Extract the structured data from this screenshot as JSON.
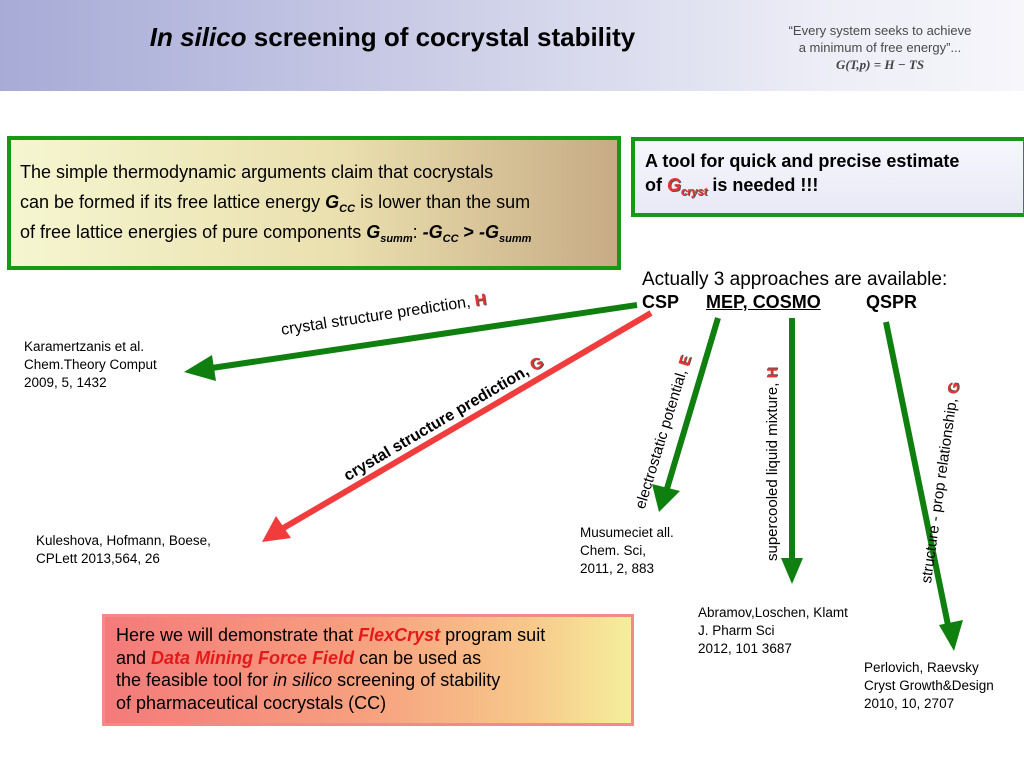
{
  "header": {
    "title_italic": "In silico",
    "title_rest": " screening of cocrystal stability",
    "quote_line1": "“Every system seeks to achieve",
    "quote_line2": "a minimum of free energy”...",
    "formula": "G(T,p) = H − TS"
  },
  "box1": {
    "l1": "The simple thermodynamic arguments claim that cocrystals",
    "l2a": "can be formed if its free lattice energy ",
    "g": "G",
    "sub_cc": "CC",
    "l2b": " is lower than the sum",
    "l3a": "of free lattice energies of pure components ",
    "sub_summ": "summ",
    "l3b": ": ",
    "neg_g": "-G",
    "gt": " > ",
    "colors": {
      "border": "#159a15"
    }
  },
  "box2": {
    "l1": "A tool for quick and precise estimate",
    "l2a": "of ",
    "g": "G",
    "sub": "cryst",
    "l2b": " is needed  !!!"
  },
  "approaches": {
    "intro": "Actually 3 approaches are available:",
    "csp": "CSP",
    "mep": "MEP, COSMO",
    "qspr": "QSPR"
  },
  "arrows": {
    "csp_h_label": "crystal structure prediction, ",
    "csp_h_letter": "H",
    "csp_g_label": "crystal  structure prediction, ",
    "csp_g_letter": "G",
    "mep_e_label": "electrostatic potential, ",
    "mep_e_letter": "E",
    "cosmo_label": "supercooled liquid mixture, ",
    "cosmo_letter": "H",
    "qspr_label": "structure - prop relationship, ",
    "qspr_letter": "G",
    "colors": {
      "green": "#0f7f0f",
      "red": "#f03c3c"
    }
  },
  "refs": {
    "karamertzanis": "Karamertzanis et al.\nChem.Theory Comput\n2009, 5, 1432",
    "kuleshova": "Kuleshova, Hofmann, Boese,\nCPLett 2013,564, 26",
    "musumeci": "Musumeciet all.\nChem. Sci,\n2011, 2, 883",
    "abramov": "Abramov,Loschen, Klamt\nJ. Pharm Sci\n2012, 101 3687",
    "perlovich": "Perlovich, Raevsky\nCryst Growth&Design\n2010, 10, 2707"
  },
  "box3": {
    "l1a": "Here we will demonstrate that  ",
    "flexcryst": "FlexCryst",
    "l1b": " program suit",
    "l2a": "and ",
    "dmff": "Data Mining Force Field",
    "l2b": " can be used as",
    "l3": "the feasible tool for ",
    "l3_it": "in silico",
    "l3b": " screening of stability",
    "l4": "of pharmaceutical cocrystals (CC)"
  }
}
